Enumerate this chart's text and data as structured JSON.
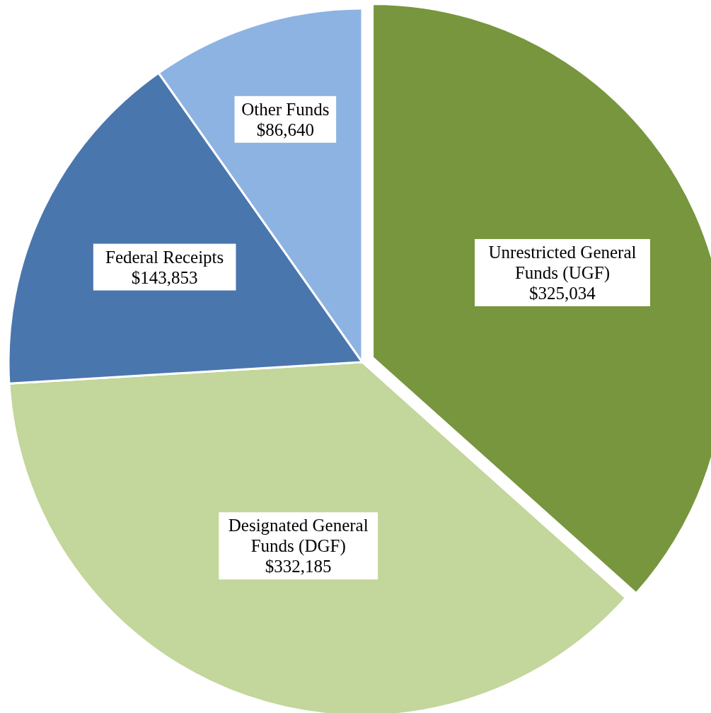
{
  "chart_data": {
    "type": "pie",
    "categories": [
      "Unrestricted General Funds (UGF)",
      "Designated General Funds (DGF)",
      "Federal Receipts",
      "Other Funds"
    ],
    "values": [
      325034,
      332185,
      143853,
      86640
    ],
    "value_labels": [
      "$325,034",
      "$332,185",
      "$143,853",
      "$86,640"
    ],
    "colors": [
      "#77963d",
      "#c3d69b",
      "#4a76ae",
      "#8db3e2"
    ]
  }
}
